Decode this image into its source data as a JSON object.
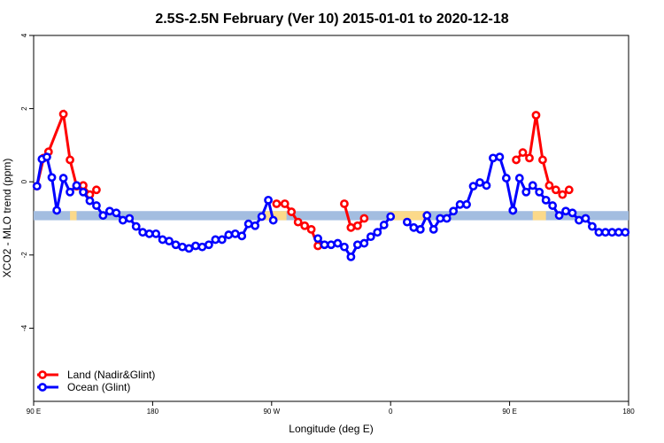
{
  "chart_data": {
    "type": "line",
    "title": "2.5S-2.5N February (Ver 10)   2015-01-01 to 2020-12-18",
    "xlabel": "Longitude (deg E)",
    "ylabel": "XCO2 - MLO trend (ppm)",
    "xlim": [
      90,
      450
    ],
    "ylim": [
      -6,
      4
    ],
    "x_ticks": [
      {
        "value": 90,
        "label": "90 E"
      },
      {
        "value": 162,
        "label": "180"
      },
      {
        "value": 234,
        "label": "90 W"
      },
      {
        "value": 306,
        "label": "0"
      },
      {
        "value": 378,
        "label": "90 E"
      },
      {
        "value": 450,
        "label": "180"
      }
    ],
    "y_ticks": [
      -4,
      -2,
      0,
      2,
      4
    ],
    "grid": false,
    "legend_position": "bottom-left",
    "band": {
      "y_range": [
        -1.05,
        -0.8
      ],
      "ocean_color": "#a3bde0",
      "land_color": "#fbd98a",
      "land_segments": [
        [
          112,
          116
        ],
        [
          228,
          243
        ],
        [
          305,
          330
        ],
        [
          392,
          400
        ]
      ]
    },
    "series": [
      {
        "name": "Land (Nadir&Glint)",
        "color": "#ff0000",
        "x": [
          92,
          96,
          99,
          108,
          112,
          116,
          120,
          124,
          128,
          132,
          132
        ],
        "y": [
          -0.12,
          0.65,
          0.82,
          1.85,
          0.6,
          -0.12,
          -0.1,
          -0.35,
          -0.22,
          null,
          null
        ],
        "segments": [
          {
            "x": [
              92,
              96,
              99,
              108,
              112,
              116
            ],
            "y": [
              -0.12,
              0.65,
              0.82,
              1.85,
              0.6,
              -0.12
            ]
          },
          {
            "x": [
              116,
              120,
              124,
              128
            ],
            "y": [
              -0.12,
              -0.1,
              -0.35,
              -0.22
            ]
          },
          {
            "x": [
              237,
              242,
              246,
              250,
              254,
              258,
              262
            ],
            "y": [
              -0.6,
              -0.6,
              -0.82,
              -1.1,
              -1.2,
              -1.3,
              -1.75
            ]
          },
          {
            "x": [
              278,
              282,
              286,
              290
            ],
            "y": [
              -0.6,
              -1.25,
              -1.2,
              -1.0
            ]
          },
          {
            "x": [
              382,
              386,
              390,
              394,
              398,
              402,
              406,
              410,
              414
            ],
            "y": [
              0.6,
              0.8,
              0.65,
              1.82,
              0.6,
              -0.1,
              -0.22,
              -0.35,
              -0.22
            ]
          }
        ]
      },
      {
        "name": "Ocean (Glint)",
        "color": "#0000ff",
        "x": [
          92,
          96,
          102,
          106,
          108,
          112,
          116,
          120,
          124,
          128,
          132,
          136,
          140,
          144,
          148,
          152,
          156,
          160,
          164,
          168,
          172,
          176,
          180,
          184,
          188,
          192,
          196,
          200,
          204,
          208,
          212,
          216,
          220,
          224,
          228,
          232,
          235,
          240,
          244,
          248,
          252,
          256,
          260,
          264,
          268,
          272,
          276,
          280,
          284,
          288,
          292,
          296,
          300,
          304,
          308,
          312,
          316,
          320,
          324,
          328,
          332,
          336,
          340,
          344,
          348,
          352,
          356,
          360,
          364,
          368,
          372,
          376,
          380,
          384,
          388,
          392,
          396,
          400,
          404,
          408,
          412,
          416,
          420,
          424,
          428,
          432,
          436,
          440,
          444,
          448
        ],
        "segments": [
          {
            "x": [
              92,
              95,
              98,
              101,
              104,
              108,
              112,
              116,
              120,
              124,
              128,
              132,
              136,
              140,
              144,
              148,
              152,
              156,
              160,
              164,
              168,
              172,
              176,
              180,
              184,
              188,
              192,
              196,
              200,
              204,
              208,
              212,
              216,
              220,
              224,
              228,
              232,
              235
            ],
            "y": [
              -0.12,
              0.62,
              0.68,
              0.12,
              -0.78,
              0.1,
              -0.28,
              -0.1,
              -0.28,
              -0.52,
              -0.65,
              -0.92,
              -0.8,
              -0.85,
              -1.05,
              -1.0,
              -1.22,
              -1.38,
              -1.42,
              -1.42,
              -1.58,
              -1.62,
              -1.72,
              -1.78,
              -1.82,
              -1.75,
              -1.78,
              -1.72,
              -1.58,
              -1.58,
              -1.45,
              -1.42,
              -1.48,
              -1.15,
              -1.2,
              -0.95,
              -0.5,
              -1.05
            ]
          },
          {
            "x": [
              262,
              266,
              270,
              274,
              278,
              282,
              286,
              290,
              294,
              298,
              302,
              306
            ],
            "y": [
              -1.55,
              -1.72,
              -1.72,
              -1.68,
              -1.78,
              -2.05,
              -1.72,
              -1.68,
              -1.5,
              -1.38,
              -1.18,
              -0.95
            ]
          },
          {
            "x": [
              316,
              320,
              324,
              328,
              332,
              336,
              340,
              344,
              348,
              352,
              356,
              360,
              364,
              368,
              372,
              376,
              380
            ],
            "y": [
              -1.1,
              -1.25,
              -1.3,
              -0.92,
              -1.3,
              -1.0,
              -1.0,
              -0.8,
              -0.62,
              -0.62,
              -0.12,
              -0.02,
              -0.1,
              0.65,
              0.68,
              0.1,
              -0.78
            ]
          },
          {
            "x": [
              380,
              384,
              388,
              392,
              396,
              400,
              404,
              408,
              412,
              416,
              420,
              424,
              428,
              432,
              436,
              440,
              444,
              448
            ],
            "y": [
              -0.78,
              0.1,
              -0.28,
              -0.1,
              -0.28,
              -0.5,
              -0.65,
              -0.92,
              -0.8,
              -0.85,
              -1.05,
              -1.0,
              -1.22,
              -1.38,
              -1.38,
              -1.38,
              -1.38,
              -1.38
            ]
          }
        ]
      }
    ]
  }
}
